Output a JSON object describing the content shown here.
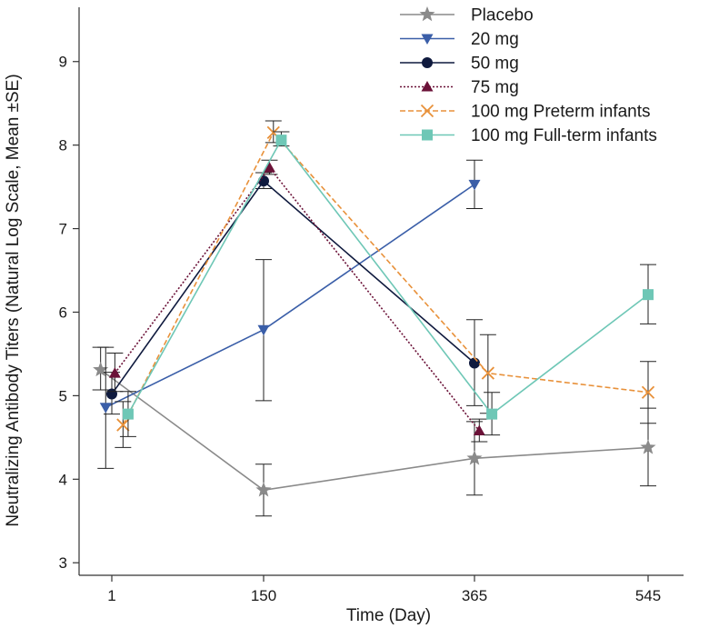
{
  "chart_data": {
    "type": "line",
    "xlabel": "Time (Day)",
    "ylabel": "Neutralizing Antibody Titers (Natural Log Scale, Mean ±SE)",
    "x_ticks": [
      "1",
      "150",
      "365",
      "545"
    ],
    "y_ticks": [
      "3",
      "4",
      "5",
      "6",
      "7",
      "8",
      "9"
    ],
    "ylim": [
      2.85,
      9.65
    ],
    "legend_position": "top-right",
    "series": [
      {
        "name": "Placebo",
        "color": "#8a8a8a",
        "marker": "star",
        "dash": "",
        "x": [
          -10,
          150,
          365,
          545
        ],
        "y": [
          5.31,
          3.87,
          4.25,
          4.38
        ],
        "err_lo": [
          5.07,
          3.56,
          3.81,
          3.92
        ],
        "err_hi": [
          5.58,
          4.18,
          4.69,
          4.85
        ]
      },
      {
        "name": "20 mg",
        "color": "#3a5ea8",
        "marker": "triangle-down",
        "dash": "",
        "x": [
          -5,
          150,
          365
        ],
        "y": [
          4.86,
          5.79,
          7.53
        ],
        "err_lo": [
          4.13,
          4.94,
          7.24
        ],
        "err_hi": [
          5.58,
          6.63,
          7.82
        ]
      },
      {
        "name": "50 mg",
        "color": "#0f1a3e",
        "marker": "circle",
        "dash": "",
        "x": [
          1,
          150,
          365
        ],
        "y": [
          5.02,
          7.57,
          5.39
        ],
        "err_lo": [
          4.78,
          7.48,
          4.88
        ],
        "err_hi": [
          5.28,
          7.67,
          5.91
        ]
      },
      {
        "name": "75 mg",
        "color": "#6b1238",
        "marker": "triangle-up",
        "dash": "2,2",
        "x": [
          4,
          156,
          370
        ],
        "y": [
          5.27,
          7.73,
          4.58
        ],
        "err_lo": [
          5.05,
          7.65,
          4.45
        ],
        "err_hi": [
          5.51,
          7.82,
          4.72
        ]
      },
      {
        "name": "100 mg Preterm infants",
        "color": "#e8913a",
        "marker": "x",
        "dash": "6,3",
        "x": [
          12,
          160,
          379,
          545
        ],
        "y": [
          4.65,
          8.15,
          5.27,
          5.04
        ],
        "err_lo": [
          4.38,
          8.03,
          4.79,
          4.67
        ],
        "err_hi": [
          4.93,
          8.29,
          5.73,
          5.41
        ]
      },
      {
        "name": "100 mg Full-term infants",
        "color": "#6ec7b6",
        "marker": "square",
        "dash": "",
        "x": [
          17,
          168,
          383,
          545
        ],
        "y": [
          4.78,
          8.06,
          4.78,
          6.21
        ],
        "err_lo": [
          4.51,
          7.99,
          4.53,
          5.86
        ],
        "err_hi": [
          5.05,
          8.16,
          5.04,
          6.57
        ]
      }
    ]
  }
}
